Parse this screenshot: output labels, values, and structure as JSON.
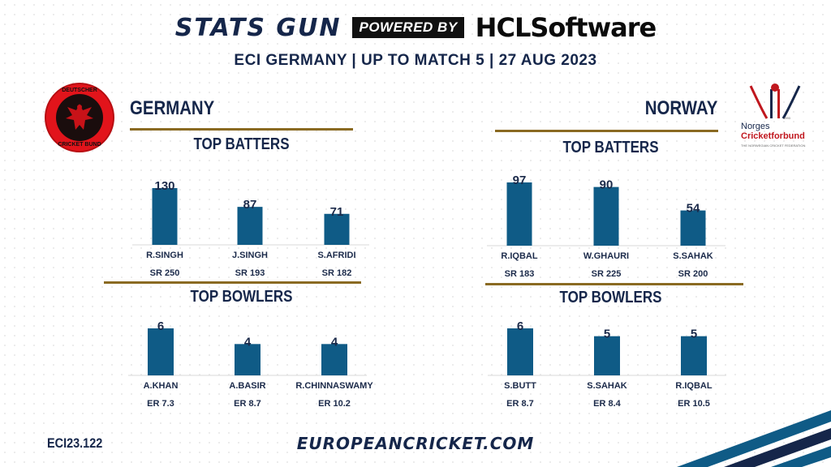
{
  "header": {
    "brand_left": "STATS GUN",
    "powered_by": "POWERED BY",
    "brand_right": "HCLSoftware",
    "subtitle": "ECI GERMANY | UP TO MATCH 5 | 27 AUG 2023"
  },
  "logos": {
    "germany_top": "DEUTSCHER",
    "germany_bottom": "CRICKET BUND",
    "norway_line1": "Norges",
    "norway_line2": "Cricketforbund",
    "norway_tagline": "THE NORWEGIAN CRICKET FEDERATION",
    "norway_year": "1993"
  },
  "colors": {
    "bar": "#0f5b86",
    "rule": "#8a6a22",
    "navy": "#15264a"
  },
  "chart_data": [
    {
      "type": "bar",
      "team": "GERMANY",
      "title": "TOP BATTERS",
      "categories": [
        "R.SINGH",
        "J.SINGH",
        "S.AFRIDI"
      ],
      "values": [
        130,
        87,
        71
      ],
      "stats": [
        "SR 250",
        "SR 193",
        "SR 182"
      ]
    },
    {
      "type": "bar",
      "team": "GERMANY",
      "title": "TOP BOWLERS",
      "categories": [
        "A.KHAN",
        "A.BASIR",
        "R.CHINNASWAMY"
      ],
      "values": [
        6,
        4,
        4
      ],
      "stats": [
        "ER 7.3",
        "ER 8.7",
        "ER 10.2"
      ]
    },
    {
      "type": "bar",
      "team": "NORWAY",
      "title": "TOP BATTERS",
      "categories": [
        "R.IQBAL",
        "W.GHAURI",
        "S.SAHAK"
      ],
      "values": [
        97,
        90,
        54
      ],
      "stats": [
        "SR 183",
        "SR 225",
        "SR 200"
      ]
    },
    {
      "type": "bar",
      "team": "NORWAY",
      "title": "TOP BOWLERS",
      "categories": [
        "S.BUTT",
        "S.SAHAK",
        "R.IQBAL"
      ],
      "values": [
        6,
        5,
        5
      ],
      "stats": [
        "ER 8.7",
        "ER 8.4",
        "ER 10.5"
      ]
    }
  ],
  "footer": {
    "code": "ECI23.122",
    "url": "EUROPEANCRICKET.COM"
  }
}
